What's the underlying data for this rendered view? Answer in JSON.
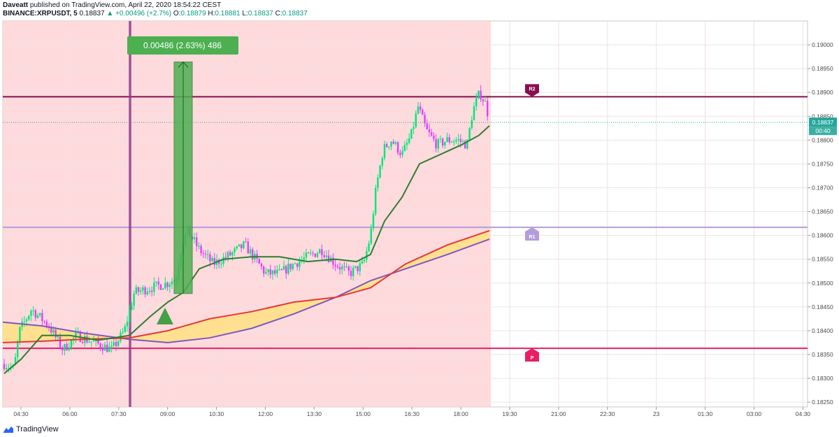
{
  "header": {
    "author": "Daveatt",
    "published_text": "published on TradingView.com, April 22, 2020 18:54:22 CEST",
    "symbol": "BINANCE:XRPUSDT, 5",
    "price": "0.18837",
    "change": "▲ +0.00496 (+2.7%)",
    "open_label": "O:",
    "open": "0.18879",
    "high_label": "H:",
    "high": "0.18881",
    "low_label": "L:",
    "low": "0.18837",
    "close_label": "C:",
    "close": "0.18837"
  },
  "footer": {
    "brand": "TradingView"
  },
  "chart_data": {
    "type": "candlestick",
    "symbol": "BINANCE:XRPUSDT",
    "timeframe": "5",
    "ylim": [
      0.1824,
      0.1905
    ],
    "y_ticks": [
      "0.19000",
      "0.18950",
      "0.18900",
      "0.18850",
      "0.18800",
      "0.18750",
      "0.18700",
      "0.18650",
      "0.18600",
      "0.18550",
      "0.18500",
      "0.18450",
      "0.18400",
      "0.18350",
      "0.18300",
      "0.18250"
    ],
    "x_ticks": [
      "04:30",
      "06:00",
      "07:30",
      "09:00",
      "10:30",
      "12:00",
      "13:30",
      "15:00",
      "16:30",
      "18:00",
      "19:30",
      "21:00",
      "22:30",
      "23",
      "01:30",
      "03:00",
      "04:30"
    ],
    "last_price_label": "0.18837",
    "countdown_label": "00:40",
    "measure": {
      "label": "0.00486 (2.63%) 486",
      "from": 0.18478,
      "to": 0.18964
    },
    "pivots": [
      {
        "name": "R2",
        "value": 0.18891,
        "color": "#880e4f"
      },
      {
        "name": "R1",
        "value": 0.18617,
        "color": "#b39ddb"
      },
      {
        "name": "P",
        "value": 0.18363,
        "color": "#e91e63"
      }
    ],
    "colors": {
      "up": "#00e676",
      "down": "#e040fb",
      "fast_ema": "#2e7d32",
      "slow_ema_red": "#e53935",
      "slow_ema_purple": "#7e57c2",
      "fill": "#ffe082",
      "shade": "#ffcdd2"
    }
  }
}
